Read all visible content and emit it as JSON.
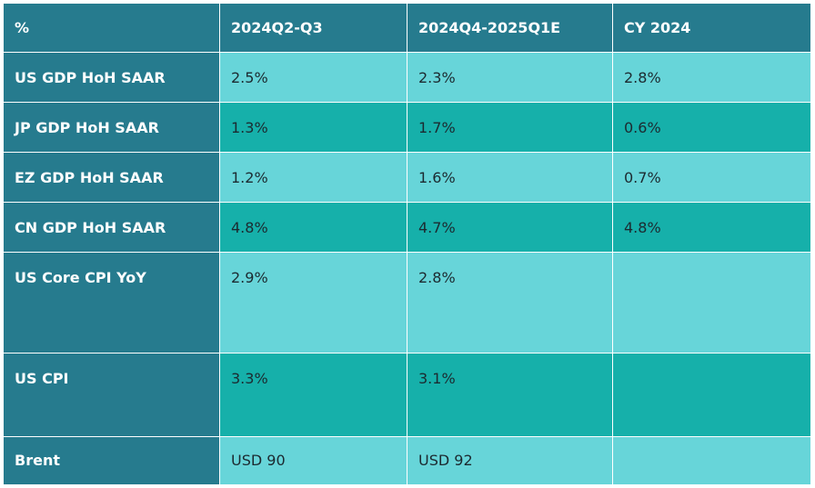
{
  "table": {
    "headers": [
      "%",
      "2024Q2-Q3",
      "2024Q4-2025Q1E",
      "CY 2024"
    ],
    "rows": [
      {
        "label": "US GDP HoH SAAR",
        "values": [
          "2.5%",
          "2.3%",
          "2.8%"
        ]
      },
      {
        "label": "JP GDP HoH SAAR",
        "values": [
          "1.3%",
          "1.7%",
          "0.6%"
        ]
      },
      {
        "label": "EZ GDP HoH SAAR",
        "values": [
          "1.2%",
          "1.6%",
          "0.7%"
        ]
      },
      {
        "label": "CN GDP HoH SAAR",
        "values": [
          "4.8%",
          "4.7%",
          "4.8%"
        ]
      },
      {
        "label": "US Core CPI  YoY",
        "values": [
          "2.9%",
          "2.8%",
          ""
        ]
      },
      {
        "label": "US CPI",
        "values": [
          "3.3%",
          "3.1%",
          ""
        ]
      },
      {
        "label": "Brent",
        "values": [
          "USD 90",
          "USD 92",
          ""
        ]
      }
    ]
  },
  "colors": {
    "header_bg": "#267b8e",
    "row_light": "#67d5d9",
    "row_dark": "#16b0aa",
    "text_light": "#ffffff",
    "text_dark": "#1c2a30"
  }
}
